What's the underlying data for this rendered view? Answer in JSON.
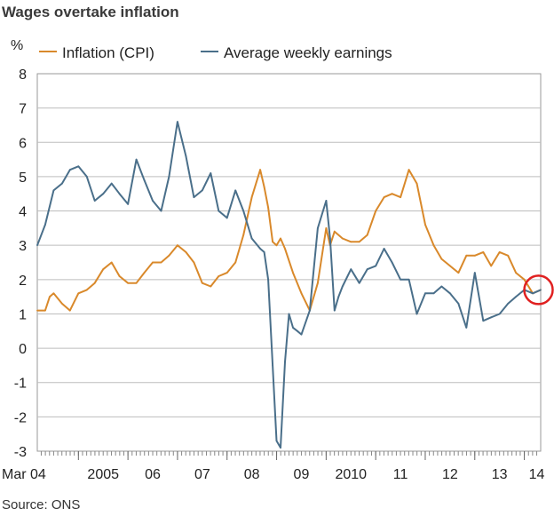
{
  "title": "Wages overtake inflation",
  "source": "Source: ONS",
  "chart_data": {
    "type": "line",
    "ylabel": "%",
    "ylim": [
      -3,
      8
    ],
    "yticks": [
      8,
      7,
      6,
      5,
      4,
      3,
      2,
      1,
      0,
      -1,
      -2,
      -3
    ],
    "xlim": [
      2004.17,
      2014.33
    ],
    "xticks": [
      {
        "label": "Mar 04",
        "x": 2004.17
      },
      {
        "label": "2005",
        "x": 2005.5
      },
      {
        "label": "06",
        "x": 2006.5
      },
      {
        "label": "07",
        "x": 2007.5
      },
      {
        "label": "08",
        "x": 2008.5
      },
      {
        "label": "09",
        "x": 2009.5
      },
      {
        "label": "2010",
        "x": 2010.5
      },
      {
        "label": "11",
        "x": 2011.5
      },
      {
        "label": "12",
        "x": 2012.5
      },
      {
        "label": "13",
        "x": 2013.5
      },
      {
        "label": "14",
        "x": 2014.25
      }
    ],
    "grid": true,
    "legend": "top",
    "highlight": {
      "x": 2014.25,
      "y": 1.7,
      "color": "#e02020"
    },
    "series": [
      {
        "name": "Inflation (CPI)",
        "color": "#d9892b",
        "x": [
          2004.17,
          2004.33,
          2004.42,
          2004.5,
          2004.67,
          2004.83,
          2005.0,
          2005.17,
          2005.33,
          2005.5,
          2005.67,
          2005.83,
          2006.0,
          2006.17,
          2006.33,
          2006.5,
          2006.67,
          2006.83,
          2007.0,
          2007.17,
          2007.33,
          2007.5,
          2007.67,
          2007.83,
          2008.0,
          2008.17,
          2008.33,
          2008.5,
          2008.67,
          2008.75,
          2008.83,
          2008.92,
          2009.0,
          2009.08,
          2009.17,
          2009.33,
          2009.5,
          2009.67,
          2009.83,
          2010.0,
          2010.08,
          2010.17,
          2010.33,
          2010.5,
          2010.67,
          2010.83,
          2011.0,
          2011.17,
          2011.33,
          2011.5,
          2011.67,
          2011.75,
          2011.83,
          2012.0,
          2012.17,
          2012.33,
          2012.5,
          2012.67,
          2012.83,
          2013.0,
          2013.17,
          2013.33,
          2013.5,
          2013.67,
          2013.83,
          2014.0,
          2014.17,
          2014.33
        ],
        "y": [
          1.1,
          1.1,
          1.5,
          1.6,
          1.3,
          1.1,
          1.6,
          1.7,
          1.9,
          2.3,
          2.5,
          2.1,
          1.9,
          1.9,
          2.2,
          2.5,
          2.5,
          2.7,
          3.0,
          2.8,
          2.5,
          1.9,
          1.8,
          2.1,
          2.2,
          2.5,
          3.3,
          4.4,
          5.2,
          4.7,
          4.1,
          3.1,
          3.0,
          3.2,
          2.9,
          2.2,
          1.6,
          1.1,
          1.9,
          3.5,
          3.0,
          3.4,
          3.2,
          3.1,
          3.1,
          3.3,
          4.0,
          4.4,
          4.5,
          4.4,
          5.2,
          5.0,
          4.8,
          3.6,
          3.0,
          2.6,
          2.4,
          2.2,
          2.7,
          2.7,
          2.8,
          2.4,
          2.8,
          2.7,
          2.2,
          2.0,
          1.6,
          1.7
        ]
      },
      {
        "name": "Average weekly earnings",
        "color": "#4a6f8a",
        "x": [
          2004.17,
          2004.33,
          2004.5,
          2004.67,
          2004.83,
          2005.0,
          2005.17,
          2005.33,
          2005.5,
          2005.67,
          2005.83,
          2006.0,
          2006.17,
          2006.33,
          2006.5,
          2006.67,
          2006.83,
          2007.0,
          2007.17,
          2007.33,
          2007.5,
          2007.67,
          2007.83,
          2008.0,
          2008.17,
          2008.33,
          2008.5,
          2008.67,
          2008.75,
          2008.83,
          2008.92,
          2009.0,
          2009.08,
          2009.17,
          2009.25,
          2009.33,
          2009.42,
          2009.5,
          2009.67,
          2009.83,
          2010.0,
          2010.08,
          2010.17,
          2010.25,
          2010.33,
          2010.5,
          2010.67,
          2010.83,
          2011.0,
          2011.17,
          2011.33,
          2011.5,
          2011.67,
          2011.83,
          2012.0,
          2012.17,
          2012.33,
          2012.5,
          2012.67,
          2012.83,
          2013.0,
          2013.17,
          2013.33,
          2013.5,
          2013.67,
          2013.83,
          2014.0,
          2014.17,
          2014.33
        ],
        "y": [
          3.0,
          3.6,
          4.6,
          4.8,
          5.2,
          5.3,
          5.0,
          4.3,
          4.5,
          4.8,
          4.5,
          4.2,
          5.5,
          4.9,
          4.3,
          4.0,
          5.0,
          6.6,
          5.6,
          4.4,
          4.6,
          5.1,
          4.0,
          3.8,
          4.6,
          4.0,
          3.2,
          2.9,
          2.8,
          2.0,
          -0.5,
          -2.7,
          -2.9,
          -0.4,
          1.0,
          0.6,
          0.5,
          0.4,
          1.1,
          3.5,
          4.3,
          3.2,
          1.1,
          1.5,
          1.8,
          2.3,
          1.9,
          2.3,
          2.4,
          2.9,
          2.5,
          2.0,
          2.0,
          1.0,
          1.6,
          1.6,
          1.8,
          1.6,
          1.3,
          0.6,
          2.2,
          0.8,
          0.9,
          1.0,
          1.3,
          1.5,
          1.7,
          1.6,
          1.7
        ]
      }
    ]
  }
}
